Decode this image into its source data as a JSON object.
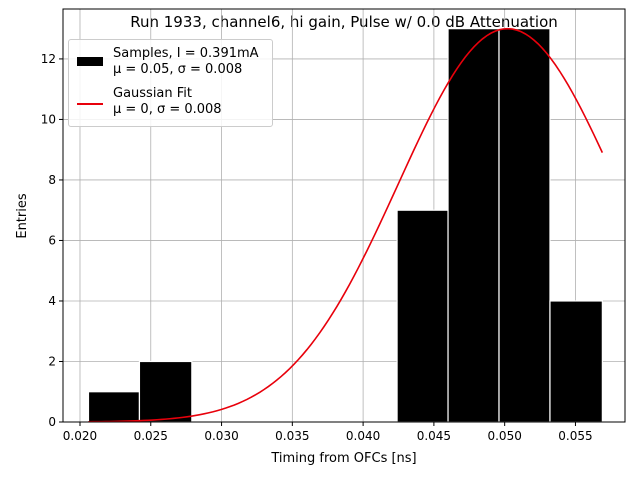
{
  "chart_data": {
    "type": "bar",
    "title": "Run 1933, channel6, hi gain, Pulse w/ 0.0 dB Attenuation",
    "xlabel": "Timing from OFCs [ns]",
    "ylabel": "Entries",
    "xlim": [
      0.0188,
      0.0585
    ],
    "ylim": [
      0,
      13.65
    ],
    "x_ticks": [
      "0.020",
      "0.025",
      "0.030",
      "0.035",
      "0.040",
      "0.045",
      "0.050",
      "0.055"
    ],
    "x_tick_values": [
      0.02,
      0.025,
      0.03,
      0.035,
      0.04,
      0.045,
      0.05,
      0.055
    ],
    "y_ticks": [
      "0",
      "2",
      "4",
      "6",
      "8",
      "10",
      "12"
    ],
    "y_tick_values": [
      0,
      2,
      4,
      6,
      8,
      10,
      12
    ],
    "grid": true,
    "legend_position": "top-left",
    "colors": {
      "bars": "#000000",
      "bar_edge": "#ffffff",
      "fit": "#e8000b",
      "grid": "#b0b0b0"
    },
    "histogram": {
      "name": "Samples, I = 0.391mA",
      "stats": "μ = 0.05, σ = 0.008",
      "bin_edges": [
        0.0206,
        0.0242,
        0.0279,
        0.0315,
        0.0351,
        0.0387,
        0.0424,
        0.046,
        0.0496,
        0.0532,
        0.0569
      ],
      "counts": [
        1,
        2,
        0,
        0,
        0,
        0,
        7,
        13,
        13,
        4
      ]
    },
    "fit": {
      "name": "Gaussian Fit",
      "stats": "μ = 0, σ = 0.008",
      "type": "gaussian",
      "amplitude": 13.0,
      "mean": 0.0502,
      "sigma": 0.0077,
      "x_range": [
        0.0206,
        0.0569
      ]
    }
  }
}
